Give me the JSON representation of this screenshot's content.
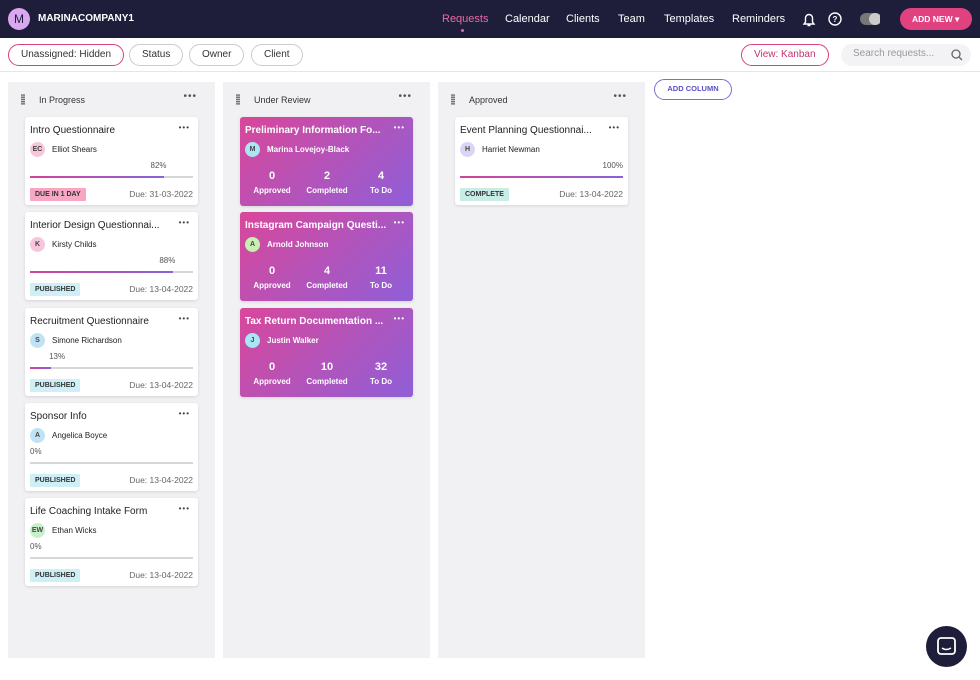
{
  "header": {
    "brand_initial": "M",
    "brand": "MARINACOMPANY1",
    "nav": [
      "Requests",
      "Calendar",
      "Clients",
      "Team",
      "Templates",
      "Reminders"
    ],
    "add_new": "ADD NEW"
  },
  "filters": {
    "chips": [
      "Unassigned: Hidden",
      "Status",
      "Owner",
      "Client"
    ],
    "view": "View: Kanban",
    "search_placeholder": "Search requests..."
  },
  "board": {
    "add_column": "ADD COLUMN",
    "columns": [
      {
        "title": "In Progress",
        "cards": [
          {
            "title": "Intro Questionnaire",
            "initials": "EC",
            "avatar_color": "#f8c6dc",
            "assignee": "Elliot Shears",
            "progress": {
              "value": 82,
              "label": "82%"
            },
            "badge": "DUE IN 1 DAY",
            "badge_color": "#f7a6c4",
            "due": "Due: 31-03-2022"
          },
          {
            "title": "Interior Design Questionnai...",
            "initials": "K",
            "avatar_color": "#f8c6dc",
            "assignee": "Kirsty Childs",
            "progress": {
              "value": 88,
              "label": "88%"
            },
            "badge": "PUBLISHED",
            "badge_color": "#cdeff5",
            "due": "Due: 13-04-2022"
          },
          {
            "title": "Recruitment Questionnaire",
            "initials": "S",
            "avatar_color": "#bfe3f5",
            "assignee": "Simone Richardson",
            "progress": {
              "value": 13,
              "label": "13%"
            },
            "badge": "PUBLISHED",
            "badge_color": "#cdeff5",
            "due": "Due: 13-04-2022"
          },
          {
            "title": "Sponsor Info",
            "initials": "A",
            "avatar_color": "#bfe3f5",
            "assignee": "Angelica Boyce",
            "progress": {
              "value": 0,
              "label": "0%"
            },
            "badge": "PUBLISHED",
            "badge_color": "#cdeff5",
            "due": "Due: 13-04-2022"
          },
          {
            "title": "Life Coaching Intake Form",
            "initials": "EW",
            "avatar_color": "#c8f0c8",
            "assignee": "Ethan Wicks",
            "progress": {
              "value": 0,
              "label": "0%"
            },
            "badge": "PUBLISHED",
            "badge_color": "#cdeff5",
            "due": "Due: 13-04-2022"
          }
        ]
      },
      {
        "title": "Under Review",
        "cards": [
          {
            "title": "Preliminary Information Fo...",
            "initials": "M",
            "avatar_color": "#a8e6f5",
            "assignee": "Marina Lovejoy-Black",
            "stats": [
              {
                "value": 0,
                "label": "Approved"
              },
              {
                "value": 2,
                "label": "Completed"
              },
              {
                "value": 4,
                "label": "To Do"
              }
            ]
          },
          {
            "title": "Instagram Campaign Questi...",
            "initials": "A",
            "avatar_color": "#c8f0b0",
            "assignee": "Arnold Johnson",
            "stats": [
              {
                "value": 0,
                "label": "Approved"
              },
              {
                "value": 4,
                "label": "Completed"
              },
              {
                "value": 11,
                "label": "To Do"
              }
            ]
          },
          {
            "title": "Tax Return Documentation ...",
            "initials": "J",
            "avatar_color": "#a8e6f5",
            "assignee": "Justin Walker",
            "stats": [
              {
                "value": 0,
                "label": "Approved"
              },
              {
                "value": 10,
                "label": "Completed"
              },
              {
                "value": 32,
                "label": "To Do"
              }
            ]
          }
        ]
      },
      {
        "title": "Approved",
        "cards": [
          {
            "title": "Event Planning Questionnai...",
            "initials": "H",
            "avatar_color": "#d9d6f5",
            "assignee": "Harriet Newman",
            "progress": {
              "value": 100,
              "label": "100%"
            },
            "badge": "COMPLETE",
            "badge_color": "#c9ece6",
            "due": "Due: 13-04-2022"
          }
        ]
      }
    ]
  }
}
